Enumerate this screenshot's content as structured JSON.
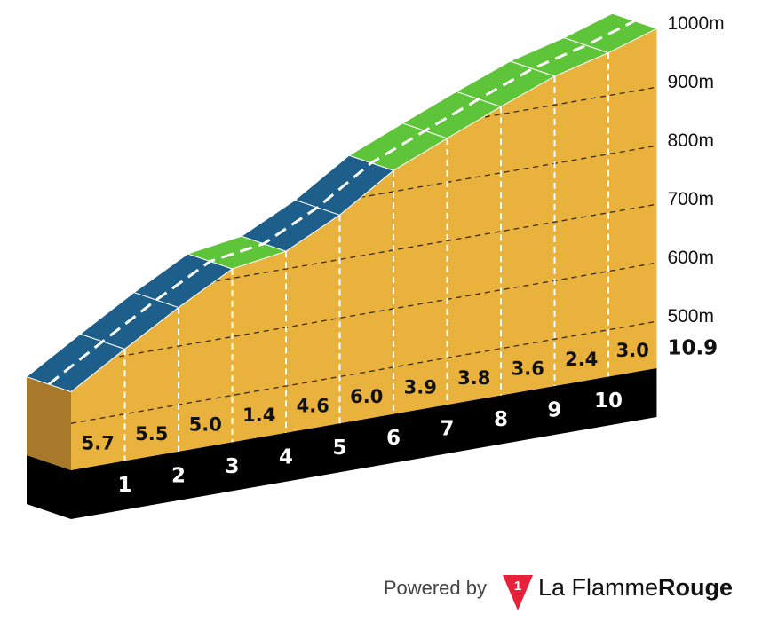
{
  "chart_data": {
    "type": "profile",
    "km": [
      0,
      1,
      2,
      3,
      4,
      5,
      6,
      7,
      8,
      9,
      10,
      10.9
    ],
    "altitudes": [
      554,
      611,
      666,
      716,
      730,
      776,
      836,
      875,
      913,
      949,
      973,
      1000
    ],
    "gradients": [
      5.7,
      5.5,
      5.0,
      1.4,
      4.6,
      6.0,
      3.9,
      3.8,
      3.6,
      2.4,
      3.0
    ],
    "value_labels": [
      "5.7",
      "5.5",
      "5.0",
      "1.4",
      "4.6",
      "6.0",
      "3.9",
      "3.8",
      "3.6",
      "2.4",
      "3.0"
    ],
    "segment_colors": [
      "#1d5f8a",
      "#1d5f8a",
      "#1d5f8a",
      "#5ec43a",
      "#1d5f8a",
      "#1d5f8a",
      "#5ec43a",
      "#5ec43a",
      "#5ec43a",
      "#5ec43a",
      "#5ec43a"
    ],
    "ylim": [
      420,
      1000
    ],
    "yticks": [
      {
        "value": 500,
        "label": "500m"
      },
      {
        "value": 600,
        "label": "600m"
      },
      {
        "value": 700,
        "label": "700m"
      },
      {
        "value": 800,
        "label": "800m"
      },
      {
        "value": 900,
        "label": "900m"
      },
      {
        "value": 1000,
        "label": "1000m"
      }
    ]
  },
  "footer": {
    "powered_by": "Powered by",
    "logo_number": "1",
    "brand_light": "La Flamme",
    "brand_bold": "Rouge"
  }
}
